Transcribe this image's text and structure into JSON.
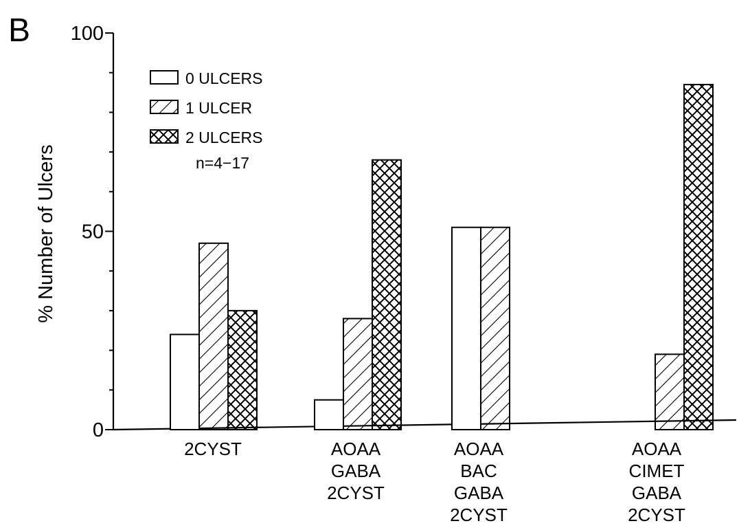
{
  "panel_label": "B",
  "chart_data": {
    "type": "bar",
    "ylabel": "% Number of Ulcers",
    "ylim": [
      0,
      100
    ],
    "yticks": [
      0,
      50,
      100
    ],
    "categories": [
      [
        "2CYST"
      ],
      [
        "AOAA",
        "GABA",
        "2CYST"
      ],
      [
        "AOAA",
        "BAC",
        "GABA",
        "2CYST"
      ],
      [
        "AOAA",
        "CIMET",
        "GABA",
        "2CYST"
      ]
    ],
    "series": [
      {
        "name": "0 ULCERS",
        "pattern": "none",
        "values": [
          24,
          7.5,
          51,
          0
        ]
      },
      {
        "name": "1 ULCER",
        "pattern": "diagonal",
        "values": [
          47,
          28,
          51,
          19
        ]
      },
      {
        "name": "2 ULCERS",
        "pattern": "crosshatch",
        "values": [
          30,
          68,
          0,
          87
        ]
      }
    ],
    "annotation": "n=4−17",
    "legend_position": "top-left"
  }
}
